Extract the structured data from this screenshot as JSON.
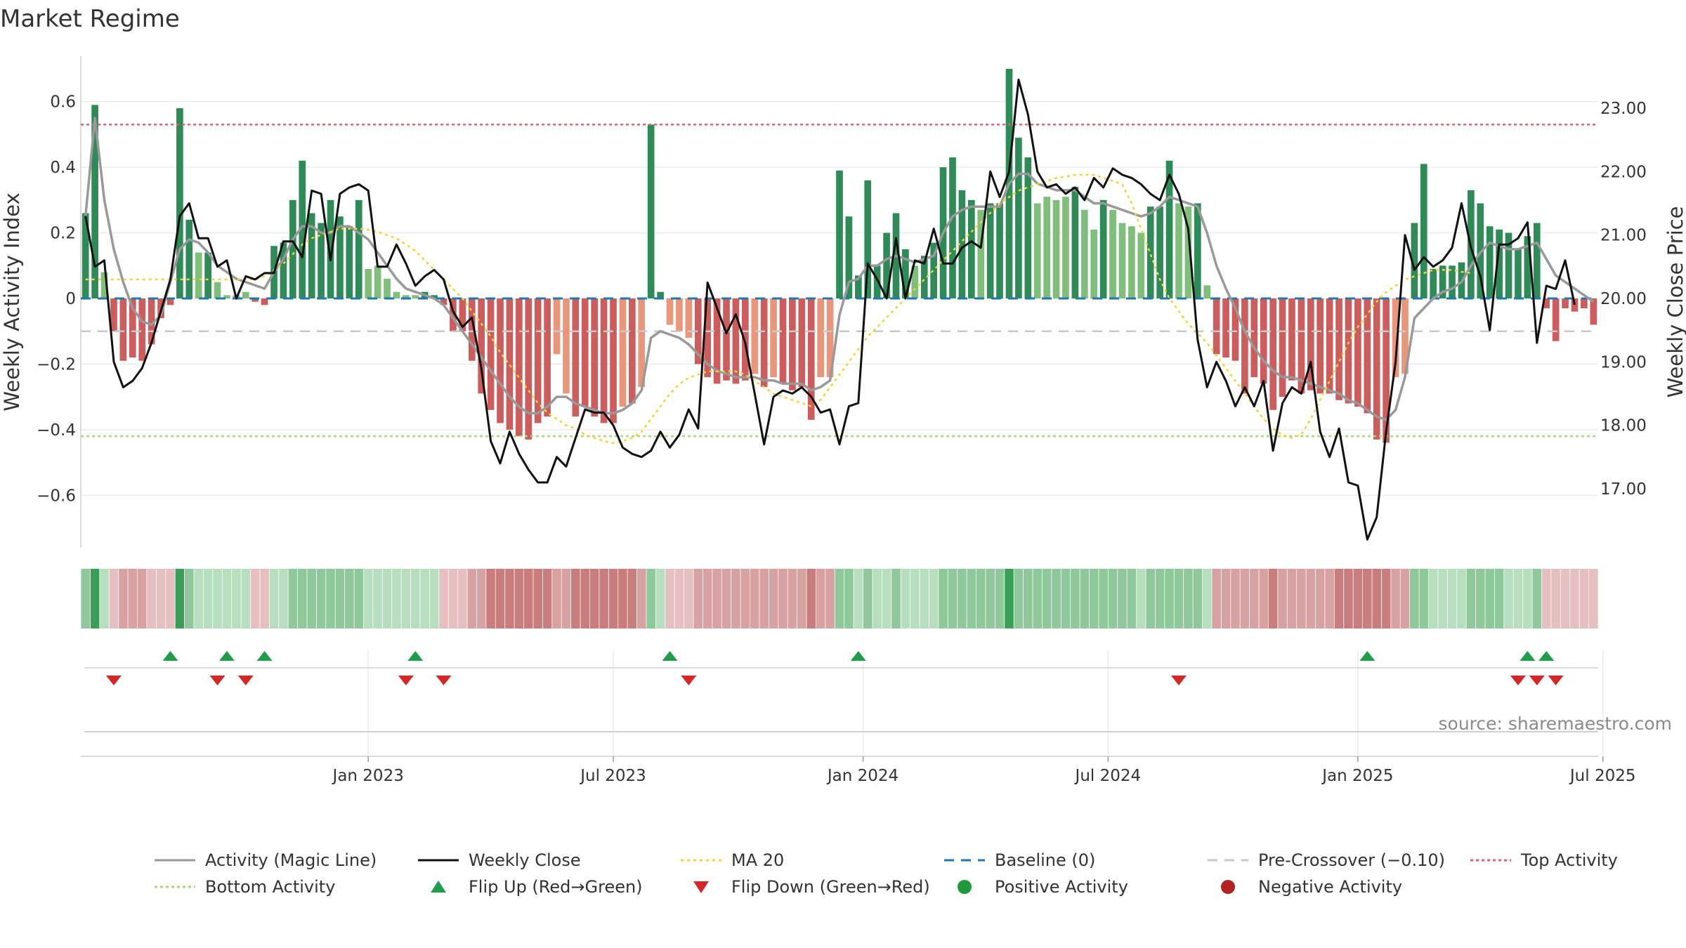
{
  "page_title": "Market Regime",
  "source_text": "source: sharemaestro.com",
  "chart_data": {
    "type": "bar",
    "title": "Market Regime",
    "ylabel_left": "Weekly Activity Index",
    "ylabel_right": "Weekly Close Price",
    "ylim_left": [
      -0.76,
      0.76
    ],
    "ylim_right": [
      16.07,
      23.93
    ],
    "left_ticks": [
      {
        "v": 0.6,
        "label": "0.6"
      },
      {
        "v": 0.4,
        "label": "0.4"
      },
      {
        "v": 0.2,
        "label": "0.2"
      },
      {
        "v": 0,
        "label": "0"
      },
      {
        "v": -0.2,
        "label": "−0.2"
      },
      {
        "v": -0.4,
        "label": "−0.4"
      },
      {
        "v": -0.6,
        "label": "−0.6"
      }
    ],
    "right_ticks": [
      {
        "v": 23,
        "label": "23.00"
      },
      {
        "v": 22,
        "label": "22.00"
      },
      {
        "v": 21,
        "label": "21.00"
      },
      {
        "v": 20,
        "label": "20.00"
      },
      {
        "v": 19,
        "label": "19.00"
      },
      {
        "v": 18,
        "label": "18.00"
      },
      {
        "v": 17,
        "label": "17.00"
      }
    ],
    "x_ticks": [
      {
        "week": 30,
        "label": "Jan 2023"
      },
      {
        "week": 56,
        "label": "Jul 2023"
      },
      {
        "week": 82.5,
        "label": "Jan 2024"
      },
      {
        "week": 108.5,
        "label": "Jul 2024"
      },
      {
        "week": 135,
        "label": "Jan 2025"
      },
      {
        "week": 161,
        "label": "Jul 2025"
      }
    ],
    "reference_lines": {
      "baseline": 0,
      "pre_crossover": -0.1,
      "top_activity": 0.53,
      "bottom_activity": -0.42
    },
    "activity": [
      0.26,
      0.59,
      0.08,
      -0.1,
      -0.19,
      -0.18,
      -0.19,
      -0.14,
      -0.06,
      -0.02,
      0.58,
      0.24,
      0.14,
      0.14,
      0.05,
      0.01,
      0.01,
      0.02,
      -0.01,
      -0.02,
      0.16,
      0.17,
      0.3,
      0.42,
      0.26,
      0.23,
      0.3,
      0.25,
      0.22,
      0.3,
      0.09,
      0.1,
      0.06,
      0.02,
      0.01,
      0.01,
      0.02,
      0.01,
      -0.02,
      -0.1,
      -0.1,
      -0.19,
      -0.29,
      -0.34,
      -0.38,
      -0.4,
      -0.42,
      -0.43,
      -0.38,
      -0.36,
      -0.17,
      -0.29,
      -0.36,
      -0.33,
      -0.36,
      -0.38,
      -0.38,
      -0.33,
      -0.32,
      -0.27,
      0.53,
      0.02,
      -0.08,
      -0.1,
      -0.12,
      -0.2,
      -0.24,
      -0.26,
      -0.25,
      -0.26,
      -0.25,
      -0.23,
      -0.27,
      -0.24,
      -0.26,
      -0.28,
      -0.27,
      -0.37,
      -0.24,
      -0.24,
      0.39,
      0.25,
      0.07,
      0.36,
      0.1,
      0.2,
      0.26,
      0.15,
      0.1,
      0.13,
      0.17,
      0.4,
      0.43,
      0.33,
      0.3,
      0.27,
      0.29,
      0.29,
      0.7,
      0.49,
      0.43,
      0.29,
      0.31,
      0.3,
      0.31,
      0.34,
      0.27,
      0.21,
      0.3,
      0.27,
      0.23,
      0.22,
      0.2,
      0.28,
      0.28,
      0.42,
      0.29,
      0.28,
      0.29,
      0.04,
      -0.17,
      -0.18,
      -0.19,
      -0.29,
      -0.24,
      -0.26,
      -0.34,
      -0.3,
      -0.25,
      -0.29,
      -0.28,
      -0.29,
      -0.29,
      -0.31,
      -0.32,
      -0.33,
      -0.35,
      -0.43,
      -0.44,
      -0.24,
      -0.23,
      0.23,
      0.41,
      0.09,
      0.1,
      0.1,
      0.11,
      0.33,
      0.29,
      0.22,
      0.21,
      0.2,
      0.15,
      0.19,
      0.23,
      -0.03,
      -0.13,
      -0.03,
      -0.04,
      -0.03,
      -0.08
    ],
    "magic_line": [
      0.25,
      0.55,
      0.3,
      0.15,
      0.05,
      -0.03,
      -0.07,
      -0.08,
      -0.05,
      0.05,
      0.15,
      0.18,
      0.17,
      0.14,
      0.1,
      0.08,
      0.06,
      0.05,
      0.04,
      0.03,
      0.08,
      0.12,
      0.18,
      0.22,
      0.22,
      0.2,
      0.2,
      0.22,
      0.22,
      0.2,
      0.18,
      0.14,
      0.1,
      0.06,
      0.03,
      0.02,
      0.01,
      0.0,
      -0.02,
      -0.06,
      -0.1,
      -0.14,
      -0.18,
      -0.22,
      -0.26,
      -0.3,
      -0.33,
      -0.35,
      -0.35,
      -0.33,
      -0.3,
      -0.3,
      -0.32,
      -0.33,
      -0.34,
      -0.35,
      -0.35,
      -0.34,
      -0.32,
      -0.28,
      -0.12,
      -0.1,
      -0.11,
      -0.12,
      -0.14,
      -0.17,
      -0.2,
      -0.22,
      -0.23,
      -0.24,
      -0.24,
      -0.24,
      -0.25,
      -0.25,
      -0.26,
      -0.26,
      -0.26,
      -0.28,
      -0.27,
      -0.25,
      -0.05,
      0.05,
      0.06,
      0.1,
      0.1,
      0.12,
      0.13,
      0.12,
      0.11,
      0.12,
      0.13,
      0.2,
      0.25,
      0.27,
      0.28,
      0.28,
      0.28,
      0.28,
      0.35,
      0.38,
      0.38,
      0.35,
      0.34,
      0.33,
      0.33,
      0.33,
      0.31,
      0.29,
      0.29,
      0.28,
      0.27,
      0.26,
      0.25,
      0.26,
      0.28,
      0.31,
      0.3,
      0.29,
      0.28,
      0.2,
      0.1,
      0.03,
      -0.03,
      -0.1,
      -0.15,
      -0.19,
      -0.22,
      -0.24,
      -0.24,
      -0.25,
      -0.26,
      -0.27,
      -0.28,
      -0.29,
      -0.31,
      -0.32,
      -0.34,
      -0.36,
      -0.37,
      -0.34,
      -0.24,
      -0.06,
      -0.03,
      0.0,
      0.02,
      0.03,
      0.05,
      0.1,
      0.14,
      0.17,
      0.16,
      0.15,
      0.15,
      0.16,
      0.17,
      0.12,
      0.07,
      0.05,
      0.03,
      0.01,
      -0.01
    ],
    "ma20": [
      20.3,
      20.3,
      20.3,
      20.3,
      20.3,
      20.3,
      20.3,
      20.3,
      20.3,
      20.3,
      20.3,
      20.3,
      20.3,
      20.3,
      20.3,
      20.3,
      20.3,
      20.3,
      20.3,
      20.35,
      20.45,
      20.55,
      20.7,
      20.85,
      20.95,
      21.0,
      21.05,
      21.1,
      21.1,
      21.1,
      21.08,
      21.05,
      21.0,
      20.95,
      20.85,
      20.75,
      20.6,
      20.45,
      20.3,
      20.15,
      20.0,
      19.8,
      19.6,
      19.4,
      19.15,
      18.95,
      18.75,
      18.55,
      18.35,
      18.2,
      18.1,
      18.0,
      17.95,
      17.85,
      17.8,
      17.75,
      17.72,
      17.75,
      17.8,
      17.9,
      18.1,
      18.3,
      18.5,
      18.65,
      18.75,
      18.8,
      18.85,
      18.85,
      18.85,
      18.85,
      18.8,
      18.7,
      18.6,
      18.5,
      18.45,
      18.4,
      18.35,
      18.3,
      18.4,
      18.6,
      18.8,
      19.0,
      19.2,
      19.4,
      19.55,
      19.7,
      19.85,
      20.0,
      20.15,
      20.3,
      20.45,
      20.6,
      20.75,
      20.9,
      21.05,
      21.2,
      21.35,
      21.5,
      21.6,
      21.7,
      21.75,
      21.8,
      21.85,
      21.9,
      21.92,
      21.95,
      21.95,
      21.95,
      21.9,
      21.85,
      21.8,
      21.5,
      21.1,
      20.7,
      20.3,
      20.0,
      19.8,
      19.6,
      19.45,
      19.3,
      19.1,
      18.9,
      18.7,
      18.5,
      18.3,
      18.1,
      17.95,
      17.85,
      17.8,
      17.85,
      18.1,
      18.4,
      18.7,
      19.0,
      19.3,
      19.55,
      19.75,
      19.95,
      20.1,
      20.2,
      20.3,
      20.35,
      20.4,
      20.45,
      20.45,
      20.45,
      20.42,
      20.4
    ],
    "ma20_x0": 0,
    "weekly_close": [
      21.3,
      20.5,
      20.6,
      19.0,
      18.6,
      18.7,
      18.9,
      19.3,
      19.8,
      20.3,
      21.3,
      21.5,
      20.95,
      20.95,
      20.5,
      20.6,
      20.0,
      20.35,
      20.3,
      20.4,
      20.4,
      20.9,
      20.9,
      20.65,
      21.7,
      21.65,
      20.6,
      21.65,
      21.75,
      21.8,
      21.7,
      20.5,
      20.5,
      20.85,
      20.55,
      20.2,
      20.35,
      20.45,
      20.3,
      19.8,
      19.55,
      19.7,
      18.9,
      17.75,
      17.4,
      17.9,
      17.55,
      17.3,
      17.1,
      17.1,
      17.5,
      17.35,
      17.8,
      18.25,
      18.2,
      18.2,
      18.0,
      17.65,
      17.55,
      17.5,
      17.6,
      17.9,
      17.65,
      17.85,
      18.25,
      17.95,
      20.25,
      19.85,
      19.45,
      19.75,
      19.3,
      18.5,
      17.7,
      18.45,
      18.55,
      18.5,
      18.6,
      18.45,
      18.2,
      18.25,
      17.7,
      18.3,
      18.35,
      20.55,
      20.3,
      20.0,
      20.95,
      20.0,
      20.6,
      20.55,
      21.1,
      20.55,
      20.55,
      20.8,
      20.9,
      20.8,
      22.0,
      21.6,
      22.0,
      23.45,
      22.9,
      22.0,
      21.75,
      21.8,
      21.65,
      21.75,
      21.55,
      21.9,
      21.75,
      22.05,
      21.95,
      21.9,
      21.8,
      21.65,
      21.55,
      21.95,
      21.65,
      21.1,
      19.35,
      18.6,
      19.0,
      18.7,
      18.3,
      18.6,
      18.3,
      18.7,
      17.6,
      18.35,
      18.6,
      18.5,
      19.0,
      17.9,
      17.5,
      17.95,
      17.1,
      17.05,
      16.2,
      16.55,
      17.9,
      19.0,
      21.0,
      20.45,
      20.65,
      20.5,
      20.6,
      20.8,
      21.5,
      20.8,
      20.35,
      19.5,
      20.85,
      20.85,
      20.95,
      21.2,
      19.3,
      20.2,
      20.15,
      20.6,
      19.9
    ],
    "bar_colors": {
      "strong_green": "#2e8b57",
      "light_green": "#7fbf7b",
      "strong_red": "#cd5c5c",
      "light_red": "#e9967a"
    },
    "strip_colors": {
      "green_light": "#b7dfbf",
      "green_mid": "#8fc89a",
      "green_dark": "#3a9e58",
      "red_light": "#e6c0c0",
      "red_mid": "#d9a2a2",
      "red_dark": "#c97d7d"
    },
    "flip_up_weeks": [
      9,
      15,
      19,
      35,
      62,
      82,
      136,
      153,
      155
    ],
    "flip_down_weeks": [
      3,
      14,
      17,
      34,
      38,
      64,
      116,
      152,
      154,
      156
    ],
    "legend": [
      {
        "label": "Activity (Magic Line)",
        "kind": "line",
        "color": "#999999",
        "dash": ""
      },
      {
        "label": "Weekly Close",
        "kind": "line",
        "color": "#111111",
        "dash": ""
      },
      {
        "label": "MA 20",
        "kind": "line",
        "color": "#f0d43a",
        "dash": "4,5"
      },
      {
        "label": "Baseline (0)",
        "kind": "line",
        "color": "#1f77b4",
        "dash": "14,10"
      },
      {
        "label": "Pre-Crossover (−0.10)",
        "kind": "line",
        "color": "#c8c8c8",
        "dash": "14,10"
      },
      {
        "label": "Top Activity",
        "kind": "line",
        "color": "#e06070",
        "dash": "4,4"
      },
      {
        "label": "Bottom Activity",
        "kind": "line",
        "color": "#a8d878",
        "dash": "4,4"
      },
      {
        "label": "Flip Up (Red→Green)",
        "kind": "tri-up",
        "color": "#1e9e4a",
        "dash": ""
      },
      {
        "label": "Flip Down (Green→Red)",
        "kind": "tri-down",
        "color": "#d62728",
        "dash": ""
      },
      {
        "label": "Positive Activity",
        "kind": "dot",
        "color": "#1f9a3a",
        "dash": ""
      },
      {
        "label": "Negative Activity",
        "kind": "dot",
        "color": "#b22222",
        "dash": ""
      }
    ]
  }
}
